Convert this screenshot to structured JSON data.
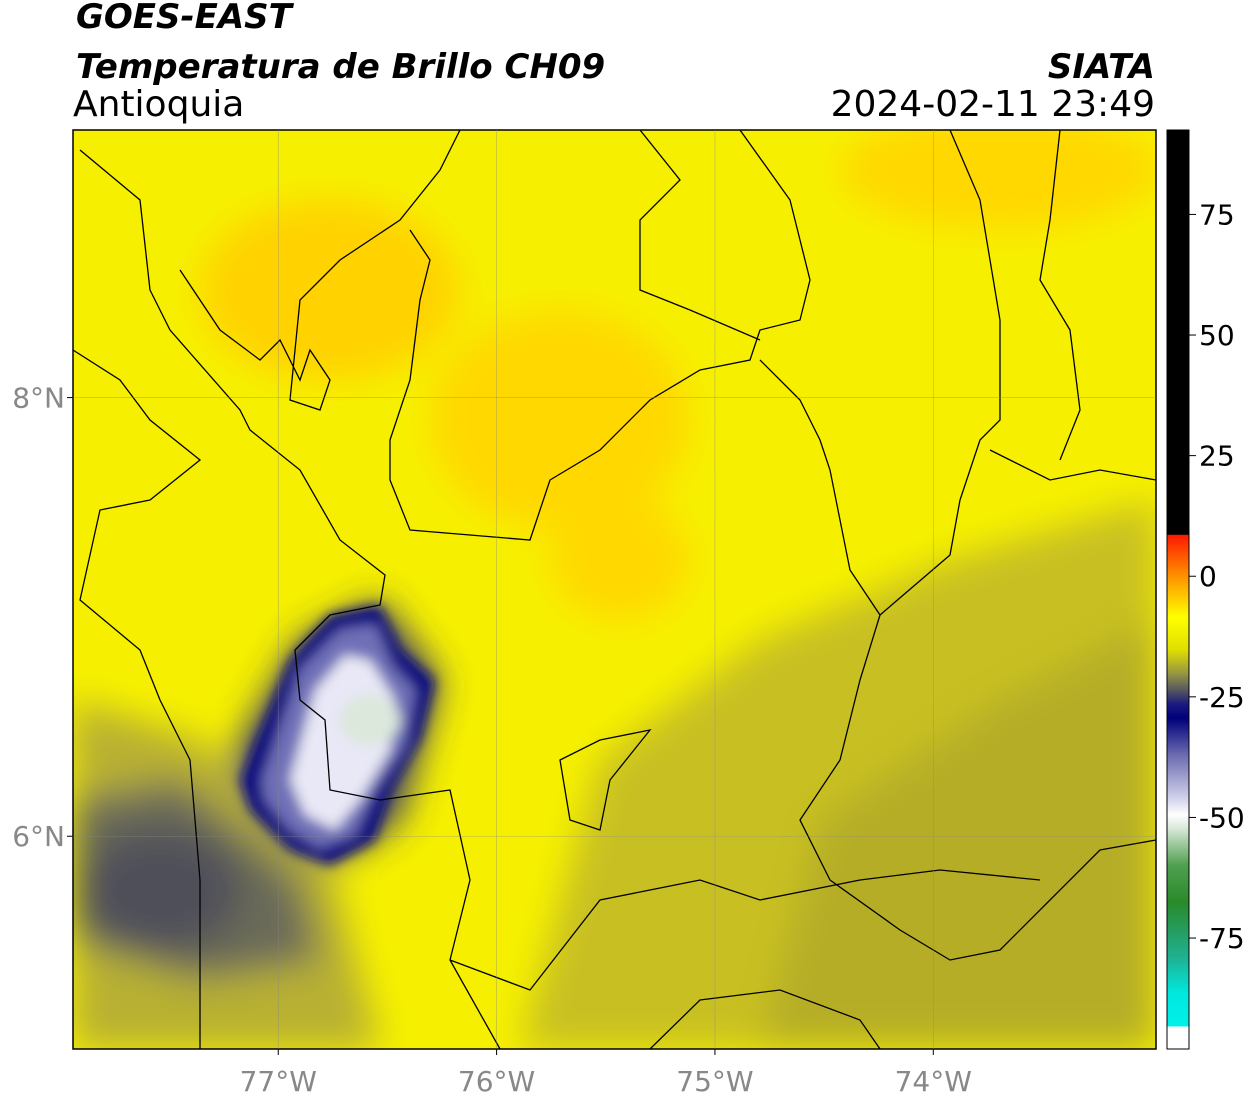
{
  "header": {
    "title": "GOES-EAST",
    "subtitle": "Temperatura de Brillo CH09",
    "region": "Antioquia",
    "source": "SIATA",
    "timestamp": "2024-02-11 23:49"
  },
  "map": {
    "lonlim": [
      -77.94,
      -72.98
    ],
    "latlim": [
      5.03,
      9.22
    ],
    "lonticks": [
      {
        "value": -77,
        "label": "77°W"
      },
      {
        "value": -76,
        "label": "76°W"
      },
      {
        "value": -75,
        "label": "75°W"
      },
      {
        "value": -74,
        "label": "74°W"
      }
    ],
    "latticks": [
      {
        "value": 8,
        "label": "8°N"
      },
      {
        "value": 6,
        "label": "6°N"
      }
    ],
    "grid": true
  },
  "colorbar": {
    "range": [
      -98,
      92.5
    ],
    "ticks": [
      75,
      50,
      25,
      0,
      -25,
      -50,
      -75
    ]
  }
}
